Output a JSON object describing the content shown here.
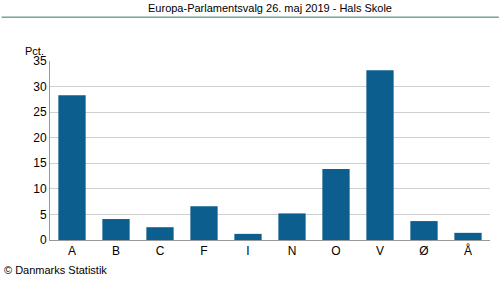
{
  "chart_data": {
    "type": "bar",
    "title": "Europa-Parlamentsvalg 26. maj 2019 - Hals Skole",
    "ylabel": "Pct.",
    "source": "© Danmarks Statistik",
    "categories": [
      "A",
      "B",
      "C",
      "F",
      "I",
      "N",
      "O",
      "V",
      "Ø",
      "Å"
    ],
    "values": [
      28.3,
      4.1,
      2.5,
      6.6,
      1.2,
      5.2,
      13.9,
      33.2,
      3.7,
      1.4
    ],
    "color": "#0b5e8e",
    "ylim": [
      0,
      35
    ],
    "yticks": [
      0,
      5,
      10,
      15,
      20,
      25,
      30,
      35
    ],
    "grid": true
  }
}
